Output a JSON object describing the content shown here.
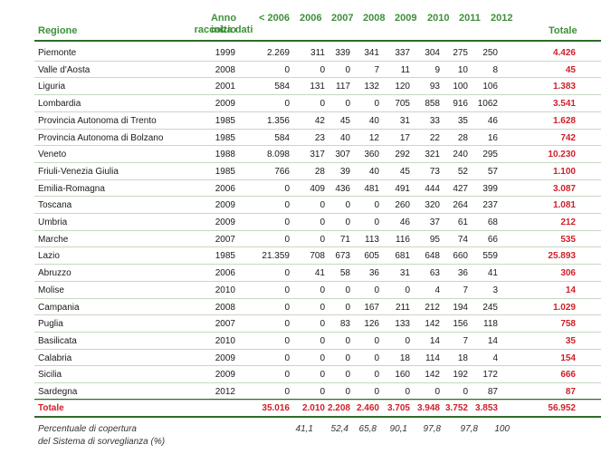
{
  "header": {
    "regione": "Regione",
    "anno_line1": "Anno inizio",
    "anno_line2": "raccolta dati",
    "pre2006": "< 2006",
    "y2006": "2006",
    "y2007": "2007",
    "y2008": "2008",
    "y2009": "2009",
    "y2010": "2010",
    "y2011": "2011",
    "y2012": "2012",
    "totale": "Totale"
  },
  "rows": [
    {
      "regione": "Piemonte",
      "anno": "1999",
      "pre2006": "2.269",
      "y2006": "311",
      "y2007": "339",
      "y2008": "341",
      "y2009": "337",
      "y2010": "304",
      "y2011": "275",
      "y2012": "250",
      "totale": "4.426"
    },
    {
      "regione": "Valle d'Aosta",
      "anno": "2008",
      "pre2006": "0",
      "y2006": "0",
      "y2007": "0",
      "y2008": "7",
      "y2009": "11",
      "y2010": "9",
      "y2011": "10",
      "y2012": "8",
      "totale": "45"
    },
    {
      "regione": "Liguria",
      "anno": "2001",
      "pre2006": "584",
      "y2006": "131",
      "y2007": "117",
      "y2008": "132",
      "y2009": "120",
      "y2010": "93",
      "y2011": "100",
      "y2012": "106",
      "totale": "1.383"
    },
    {
      "regione": "Lombardia",
      "anno": "2009",
      "pre2006": "0",
      "y2006": "0",
      "y2007": "0",
      "y2008": "0",
      "y2009": "705",
      "y2010": "858",
      "y2011": "916",
      "y2012": "1062",
      "totale": "3.541"
    },
    {
      "regione": "Provincia Autonoma di Trento",
      "anno": "1985",
      "pre2006": "1.356",
      "y2006": "42",
      "y2007": "45",
      "y2008": "40",
      "y2009": "31",
      "y2010": "33",
      "y2011": "35",
      "y2012": "46",
      "totale": "1.628"
    },
    {
      "regione": "Provincia Autonoma di Bolzano",
      "anno": "1985",
      "pre2006": "584",
      "y2006": "23",
      "y2007": "40",
      "y2008": "12",
      "y2009": "17",
      "y2010": "22",
      "y2011": "28",
      "y2012": "16",
      "totale": "742"
    },
    {
      "regione": "Veneto",
      "anno": "1988",
      "pre2006": "8.098",
      "y2006": "317",
      "y2007": "307",
      "y2008": "360",
      "y2009": "292",
      "y2010": "321",
      "y2011": "240",
      "y2012": "295",
      "totale": "10.230"
    },
    {
      "regione": "Friuli-Venezia Giulia",
      "anno": "1985",
      "pre2006": "766",
      "y2006": "28",
      "y2007": "39",
      "y2008": "40",
      "y2009": "45",
      "y2010": "73",
      "y2011": "52",
      "y2012": "57",
      "totale": "1.100"
    },
    {
      "regione": "Emilia-Romagna",
      "anno": "2006",
      "pre2006": "0",
      "y2006": "409",
      "y2007": "436",
      "y2008": "481",
      "y2009": "491",
      "y2010": "444",
      "y2011": "427",
      "y2012": "399",
      "totale": "3.087"
    },
    {
      "regione": "Toscana",
      "anno": "2009",
      "pre2006": "0",
      "y2006": "0",
      "y2007": "0",
      "y2008": "0",
      "y2009": "260",
      "y2010": "320",
      "y2011": "264",
      "y2012": "237",
      "totale": "1.081"
    },
    {
      "regione": "Umbria",
      "anno": "2009",
      "pre2006": "0",
      "y2006": "0",
      "y2007": "0",
      "y2008": "0",
      "y2009": "46",
      "y2010": "37",
      "y2011": "61",
      "y2012": "68",
      "totale": "212"
    },
    {
      "regione": "Marche",
      "anno": "2007",
      "pre2006": "0",
      "y2006": "0",
      "y2007": "71",
      "y2008": "113",
      "y2009": "116",
      "y2010": "95",
      "y2011": "74",
      "y2012": "66",
      "totale": "535"
    },
    {
      "regione": "Lazio",
      "anno": "1985",
      "pre2006": "21.359",
      "y2006": "708",
      "y2007": "673",
      "y2008": "605",
      "y2009": "681",
      "y2010": "648",
      "y2011": "660",
      "y2012": "559",
      "totale": "25.893"
    },
    {
      "regione": "Abruzzo",
      "anno": "2006",
      "pre2006": "0",
      "y2006": "41",
      "y2007": "58",
      "y2008": "36",
      "y2009": "31",
      "y2010": "63",
      "y2011": "36",
      "y2012": "41",
      "totale": "306"
    },
    {
      "regione": "Molise",
      "anno": "2010",
      "pre2006": "0",
      "y2006": "0",
      "y2007": "0",
      "y2008": "0",
      "y2009": "0",
      "y2010": "4",
      "y2011": "7",
      "y2012": "3",
      "totale": "14"
    },
    {
      "regione": "Campania",
      "anno": "2008",
      "pre2006": "0",
      "y2006": "0",
      "y2007": "0",
      "y2008": "167",
      "y2009": "211",
      "y2010": "212",
      "y2011": "194",
      "y2012": "245",
      "totale": "1.029"
    },
    {
      "regione": "Puglia",
      "anno": "2007",
      "pre2006": "0",
      "y2006": "0",
      "y2007": "83",
      "y2008": "126",
      "y2009": "133",
      "y2010": "142",
      "y2011": "156",
      "y2012": "118",
      "totale": "758"
    },
    {
      "regione": "Basilicata",
      "anno": "2010",
      "pre2006": "0",
      "y2006": "0",
      "y2007": "0",
      "y2008": "0",
      "y2009": "0",
      "y2010": "14",
      "y2011": "7",
      "y2012": "14",
      "totale": "35"
    },
    {
      "regione": "Calabria",
      "anno": "2009",
      "pre2006": "0",
      "y2006": "0",
      "y2007": "0",
      "y2008": "0",
      "y2009": "18",
      "y2010": "114",
      "y2011": "18",
      "y2012": "4",
      "totale": "154"
    },
    {
      "regione": "Sicilia",
      "anno": "2009",
      "pre2006": "0",
      "y2006": "0",
      "y2007": "0",
      "y2008": "0",
      "y2009": "160",
      "y2010": "142",
      "y2011": "192",
      "y2012": "172",
      "totale": "666"
    },
    {
      "regione": "Sardegna",
      "anno": "2012",
      "pre2006": "0",
      "y2006": "0",
      "y2007": "0",
      "y2008": "0",
      "y2009": "0",
      "y2010": "0",
      "y2011": "0",
      "y2012": "87",
      "totale": "87"
    }
  ],
  "totals": {
    "label": "Totale",
    "pre2006": "35.016",
    "y2006": "2.010",
    "y2007": "2.208",
    "y2008": "2.460",
    "y2009": "3.705",
    "y2010": "3.948",
    "y2011": "3.752",
    "y2012": "3.853",
    "totale": "56.952"
  },
  "coverage": {
    "label_line1": "Percentuale di copertura",
    "label_line2": "del Sistema di sorveglianza (%)",
    "y2006": "41,1",
    "y2007": "52,4",
    "y2008": "65,8",
    "y2009": "90,1",
    "y2010": "97,8",
    "y2011": "97,8",
    "y2012": "100"
  },
  "colors": {
    "header_green": "#3f8f3a",
    "rule_green": "#2e6b2a",
    "total_red": "#d0202a"
  }
}
